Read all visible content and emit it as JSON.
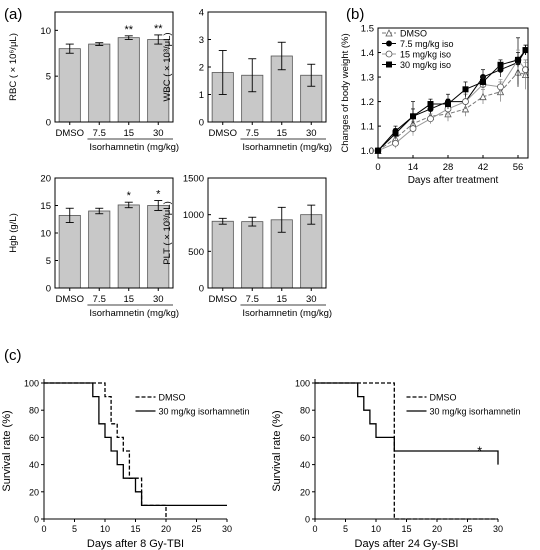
{
  "panel_labels": {
    "a": "(a)",
    "b": "(b)",
    "c": "(c)"
  },
  "chart_data": [
    {
      "id": "rbc",
      "type": "bar",
      "panel": "(a)",
      "categories": [
        "DMSO",
        "7.5",
        "15",
        "30"
      ],
      "values": [
        8.0,
        8.5,
        9.2,
        9.0
      ],
      "errors": [
        0.5,
        0.15,
        0.2,
        0.5
      ],
      "significance": [
        "",
        "",
        "**",
        "**"
      ],
      "xlabel": "Isorhamnetin (mg/kg)",
      "ylabel": "RBC ( × 10⁶/μL)",
      "ylim": [
        0,
        12
      ],
      "yticks": [
        0,
        5,
        10
      ],
      "bar_color": "#c8c8c8"
    },
    {
      "id": "wbc",
      "type": "bar",
      "panel": "(a)",
      "categories": [
        "DMSO",
        "7.5",
        "15",
        "30"
      ],
      "values": [
        1.8,
        1.7,
        2.4,
        1.7
      ],
      "errors": [
        0.8,
        0.6,
        0.5,
        0.4
      ],
      "significance": [
        "",
        "",
        "",
        ""
      ],
      "xlabel": "Isorhamnetin (mg/kg)",
      "ylabel": "WBC ( × 10³/μL)",
      "ylim": [
        0,
        4
      ],
      "yticks": [
        0,
        1,
        2,
        3,
        4
      ],
      "bar_color": "#c8c8c8"
    },
    {
      "id": "hgb",
      "type": "bar",
      "panel": "(a)",
      "categories": [
        "DMSO",
        "7.5",
        "15",
        "30"
      ],
      "values": [
        13.2,
        14.0,
        15.1,
        15.0
      ],
      "errors": [
        1.3,
        0.5,
        0.5,
        0.9
      ],
      "significance": [
        "",
        "",
        "*",
        "*"
      ],
      "xlabel": "Isorhamnetin (mg/kg)",
      "ylabel": "Hgb (g/L)",
      "ylim": [
        0,
        20
      ],
      "yticks": [
        0,
        5,
        10,
        15,
        20
      ],
      "bar_color": "#c8c8c8"
    },
    {
      "id": "plt",
      "type": "bar",
      "panel": "(a)",
      "categories": [
        "DMSO",
        "7.5",
        "15",
        "30"
      ],
      "values": [
        910,
        905,
        930,
        1000
      ],
      "errors": [
        40,
        60,
        170,
        130
      ],
      "significance": [
        "",
        "",
        "",
        ""
      ],
      "xlabel": "Isorhamnetin (mg/kg)",
      "ylabel": "PLT ( × 10³/μL)",
      "ylim": [
        0,
        1500
      ],
      "yticks": [
        0,
        500,
        1000,
        1500
      ],
      "bar_color": "#c8c8c8"
    },
    {
      "id": "bw",
      "type": "line",
      "panel": "(b)",
      "xlabel": "Days after treatment",
      "ylabel": "Changes of body weight (%)",
      "xlim": [
        0,
        60
      ],
      "xticks": [
        0,
        14,
        28,
        42,
        56
      ],
      "ylim": [
        0.97,
        1.5
      ],
      "yticks": [
        1.0,
        1.1,
        1.2,
        1.3,
        1.4,
        1.5
      ],
      "legend_position": "top-left",
      "series": [
        {
          "name": "DMSO",
          "marker": "open-triangle",
          "dash": "4,2",
          "x": [
            0,
            7,
            14,
            21,
            28,
            35,
            42,
            49,
            56,
            59
          ],
          "y": [
            1.0,
            1.05,
            1.11,
            1.14,
            1.15,
            1.17,
            1.22,
            1.24,
            1.32,
            1.31
          ],
          "err": [
            0,
            0.03,
            0.04,
            0.03,
            0.03,
            0.03,
            0.03,
            0.04,
            0.05,
            0.06
          ]
        },
        {
          "name": "7.5 mg/kg iso",
          "marker": "filled-circle",
          "dash": "",
          "x": [
            0,
            7,
            14,
            21,
            28,
            35,
            42,
            49,
            56,
            59
          ],
          "y": [
            1.0,
            1.08,
            1.14,
            1.17,
            1.2,
            1.2,
            1.3,
            1.33,
            1.36,
            1.41
          ],
          "err": [
            0,
            0.02,
            0.06,
            0.03,
            0.03,
            0.03,
            0.03,
            0.03,
            0.1,
            0.02
          ]
        },
        {
          "name": "15 mg/kg iso",
          "marker": "open-circle",
          "dash": "",
          "x": [
            0,
            7,
            14,
            21,
            28,
            35,
            42,
            49,
            56,
            59
          ],
          "y": [
            1.0,
            1.03,
            1.09,
            1.13,
            1.17,
            1.2,
            1.27,
            1.26,
            1.37,
            1.33
          ],
          "err": [
            0,
            0.02,
            0.03,
            0.02,
            0.03,
            0.03,
            0.03,
            0.03,
            0.04,
            0.03
          ]
        },
        {
          "name": "30 mg/kg iso",
          "marker": "filled-square",
          "dash": "",
          "x": [
            0,
            7,
            14,
            21,
            28,
            35,
            42,
            49,
            56,
            59
          ],
          "y": [
            1.0,
            1.07,
            1.14,
            1.19,
            1.19,
            1.25,
            1.28,
            1.35,
            1.37,
            1.41
          ],
          "err": [
            0,
            0.02,
            0.03,
            0.02,
            0.02,
            0.03,
            0.02,
            0.02,
            0.03,
            0.02
          ]
        }
      ]
    },
    {
      "id": "tbi",
      "type": "line",
      "step": true,
      "panel": "(c)",
      "xlabel": "Days after 8 Gy-TBI",
      "ylabel": "Survival rate (%)",
      "xlim": [
        0,
        30
      ],
      "xticks": [
        0,
        5,
        10,
        15,
        20,
        25,
        30
      ],
      "ylim": [
        0,
        100
      ],
      "yticks": [
        0,
        20,
        40,
        60,
        80,
        100
      ],
      "legend_position": "top-right",
      "series": [
        {
          "name": "DMSO",
          "dash": "4,2",
          "x": [
            0,
            10,
            11,
            12,
            13,
            14,
            16,
            20,
            20
          ],
          "y": [
            100,
            90,
            70,
            60,
            50,
            30,
            10,
            10,
            0
          ]
        },
        {
          "name": "30 mg/kg isorhamnetin",
          "dash": "",
          "x": [
            0,
            8,
            9,
            10,
            11,
            12,
            13,
            14,
            15,
            16,
            30
          ],
          "y": [
            100,
            90,
            70,
            60,
            50,
            40,
            30,
            30,
            20,
            10,
            10
          ]
        }
      ]
    },
    {
      "id": "sbi",
      "type": "line",
      "step": true,
      "panel": "(c)",
      "xlabel": "Days after 24 Gy-SBI",
      "ylabel": "Survival rate (%)",
      "xlim": [
        0,
        30
      ],
      "xticks": [
        0,
        5,
        10,
        15,
        20,
        25,
        30
      ],
      "ylim": [
        0,
        100
      ],
      "yticks": [
        0,
        20,
        40,
        60,
        80,
        100
      ],
      "legend_position": "top-right",
      "annotations": [
        "*"
      ],
      "series": [
        {
          "name": "DMSO",
          "dash": "4,2",
          "x": [
            0,
            13,
            13,
            30
          ],
          "y": [
            100,
            100,
            0,
            0
          ]
        },
        {
          "name": "30 mg/kg isorhamnetin",
          "dash": "",
          "x": [
            0,
            7,
            8,
            9,
            10,
            13,
            30
          ],
          "y": [
            100,
            90,
            80,
            70,
            60,
            50,
            40
          ]
        }
      ]
    }
  ]
}
